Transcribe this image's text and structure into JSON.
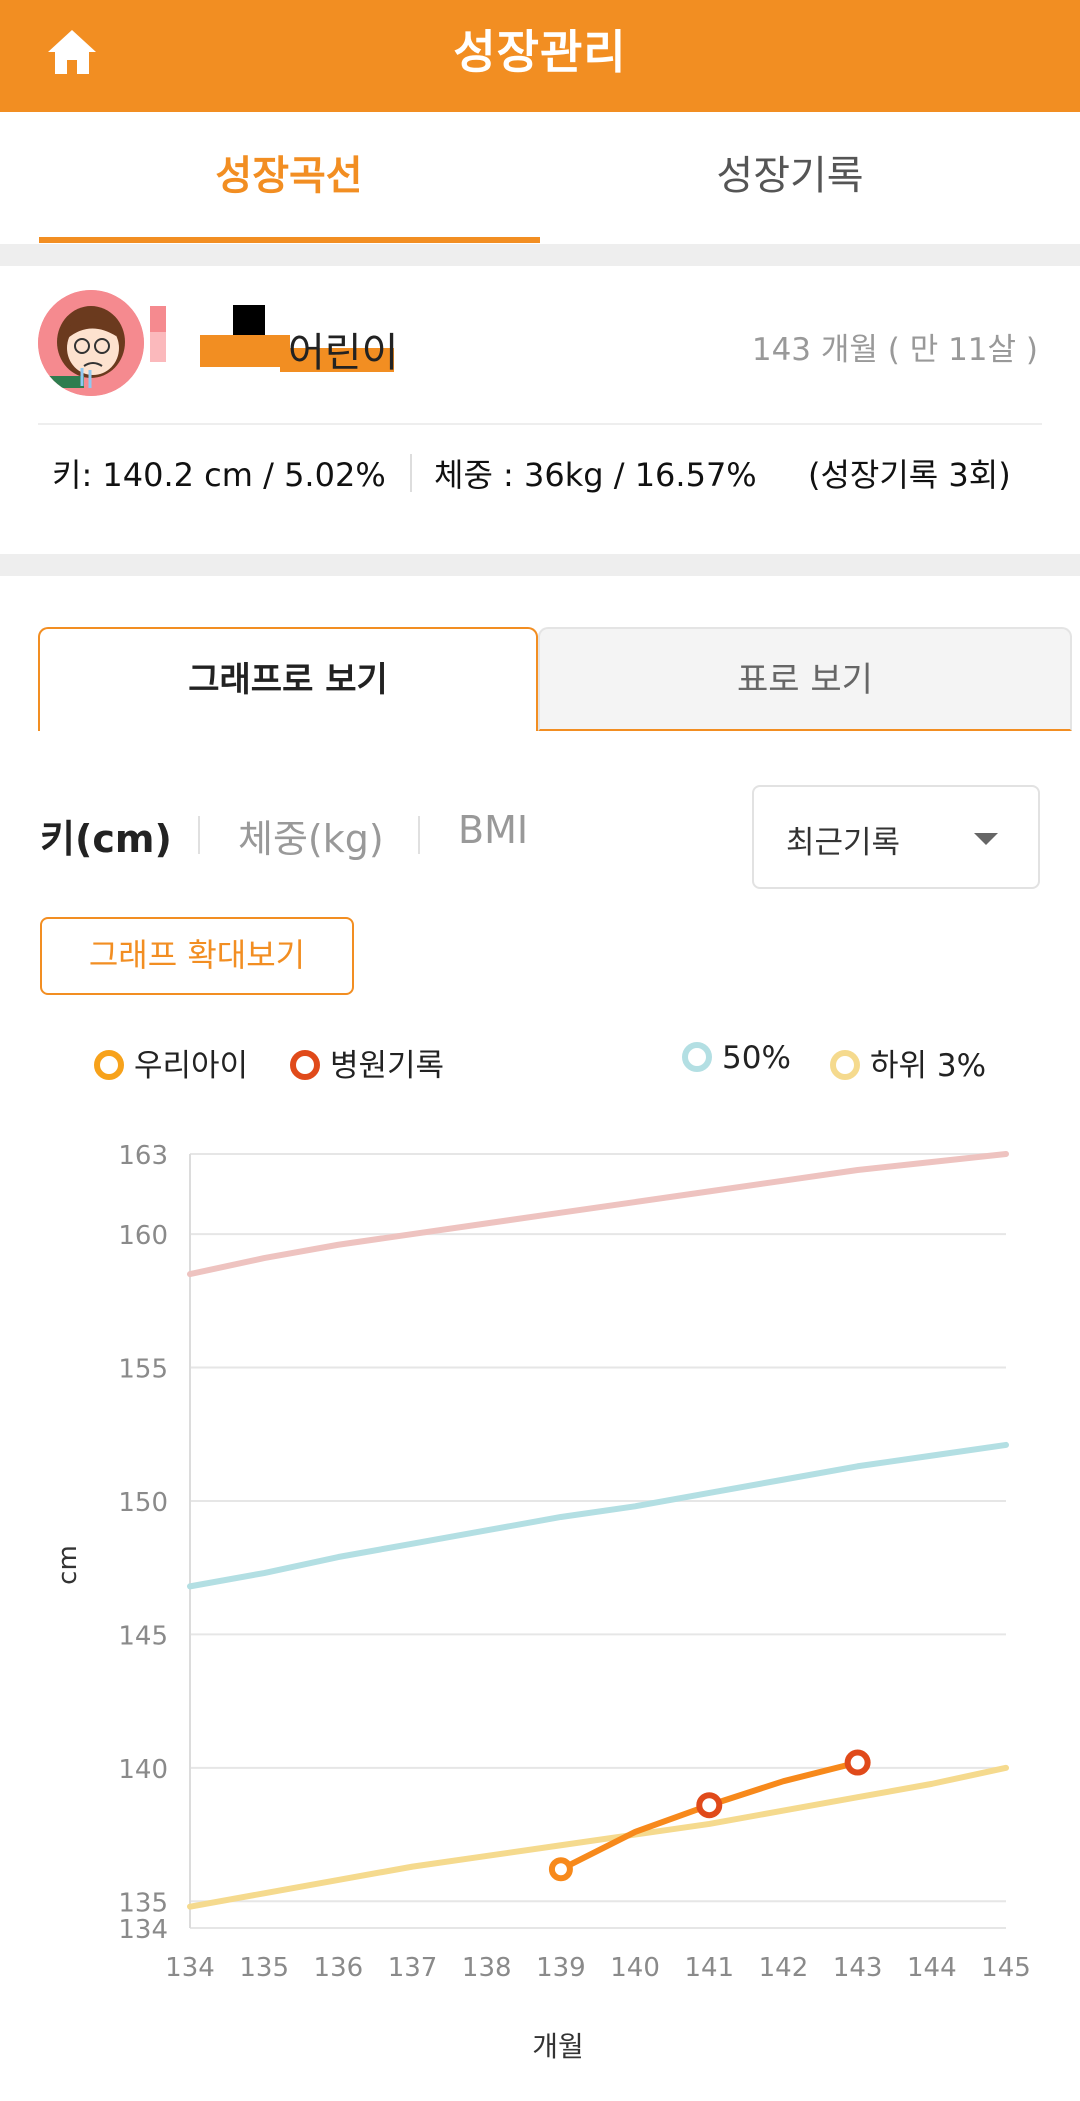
{
  "header": {
    "title": "성장관리",
    "home_icon": "home-icon"
  },
  "tabs": [
    {
      "label": "성장곡선"
    },
    {
      "label": "성장기록"
    }
  ],
  "profile": {
    "name": "어린이",
    "age": "143 개월 ( 만 11살 )",
    "height_stat": "키: 140.2 cm / 5.02%",
    "weight_stat": "체중 : 36kg / 16.57%",
    "record_count": "(성장기록 3회)"
  },
  "view_tabs": [
    {
      "label": "그래프로 보기"
    },
    {
      "label": "표로 보기"
    }
  ],
  "metric_tabs": [
    {
      "label": "키(cm)"
    },
    {
      "label": "체중(kg)"
    },
    {
      "label": "BMI"
    }
  ],
  "dropdown": {
    "selected": "최근기록"
  },
  "zoom_button": "그래프 확대보기",
  "legend": [
    {
      "label": "우리아이",
      "color": "#f7a21b"
    },
    {
      "label": "병원기록",
      "color": "#e04a1a"
    },
    {
      "label": "50%",
      "color": "#b3dfe3"
    },
    {
      "label": "하위 3%",
      "color": "#f5da8e"
    }
  ],
  "chart_data": {
    "type": "line",
    "xlabel": "개월",
    "ylabel": "cm",
    "xlim": [
      134,
      145
    ],
    "ylim": [
      134,
      163
    ],
    "x_ticks": [
      134,
      135,
      136,
      137,
      138,
      139,
      140,
      141,
      142,
      143,
      144,
      145
    ],
    "y_ticks": [
      134,
      135,
      140,
      145,
      150,
      155,
      160,
      163
    ],
    "series": [
      {
        "name": "우리아이",
        "color": "#f7891b",
        "x": [
          139,
          140,
          141,
          142,
          143
        ],
        "y": [
          136.2,
          137.6,
          138.6,
          139.5,
          140.2
        ]
      },
      {
        "name": "병원기록",
        "color": "#e04a1a",
        "x": [
          141,
          143
        ],
        "y": [
          138.6,
          140.2
        ]
      },
      {
        "name": "50%",
        "color": "#b3dfe3",
        "x": [
          134,
          135,
          136,
          137,
          138,
          139,
          140,
          141,
          142,
          143,
          144,
          145
        ],
        "y": [
          146.8,
          147.3,
          147.9,
          148.4,
          148.9,
          149.4,
          149.8,
          150.3,
          150.8,
          151.3,
          151.7,
          152.1
        ]
      },
      {
        "name": "하위 3%",
        "color": "#f5da8e",
        "x": [
          134,
          135,
          136,
          137,
          138,
          139,
          140,
          141,
          142,
          143,
          144,
          145
        ],
        "y": [
          134.8,
          135.3,
          135.8,
          136.3,
          136.7,
          137.1,
          137.5,
          137.9,
          138.4,
          138.9,
          139.4,
          140.0
        ]
      },
      {
        "name": "",
        "color": "#eec3c0",
        "x": [
          134,
          135,
          136,
          137,
          138,
          139,
          140,
          141,
          142,
          143,
          144,
          145
        ],
        "y": [
          158.5,
          159.1,
          159.6,
          160.0,
          160.4,
          160.8,
          161.2,
          161.6,
          162.0,
          162.4,
          162.7,
          163.0
        ]
      }
    ]
  }
}
